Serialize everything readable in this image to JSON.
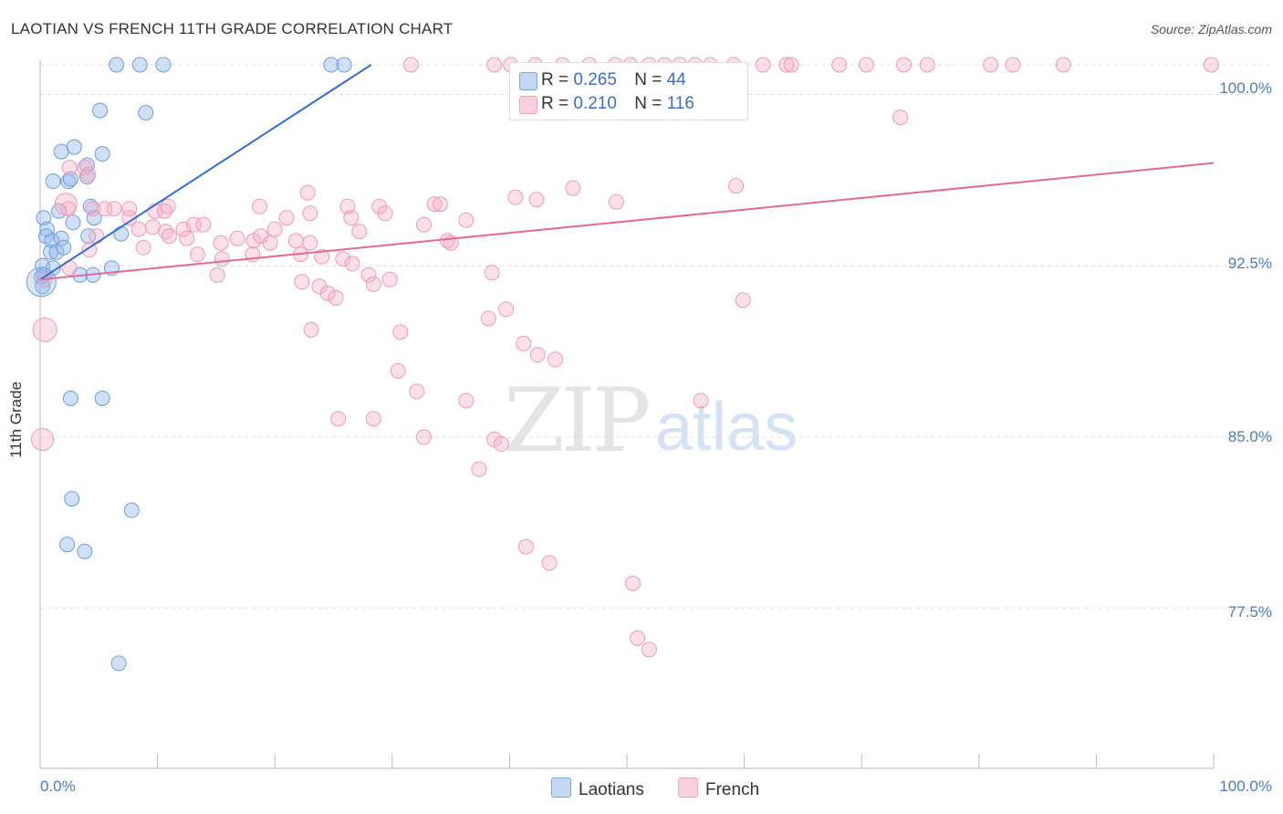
{
  "header": {
    "title": "LAOTIAN VS FRENCH 11TH GRADE CORRELATION CHART",
    "source": "Source: ZipAtlas.com"
  },
  "watermark": {
    "zip": "ZIP",
    "atlas": "atlas"
  },
  "legend": {
    "rows": [
      {
        "r_label": "R =",
        "r_value": "0.265",
        "n_label": "N =",
        "n_value": "44",
        "color": "#7aa6e0"
      },
      {
        "r_label": "R =",
        "r_value": "0.210",
        "n_label": "N =",
        "n_value": "116",
        "color": "#f0a0bc"
      }
    ]
  },
  "bottom_legend": {
    "laotians": "Laotians",
    "french": "French"
  },
  "chart_data": {
    "type": "scatter",
    "title": "LAOTIAN VS FRENCH 11TH GRADE CORRELATION CHART",
    "xlabel": "",
    "ylabel": "11th Grade",
    "xlim": [
      0,
      100
    ],
    "ylim": [
      70.5,
      101.5
    ],
    "x_tick_labels": [
      "0.0%",
      "100.0%"
    ],
    "y_ticks": [
      77.5,
      85.0,
      92.5,
      100.0
    ],
    "y_tick_labels": [
      "77.5%",
      "85.0%",
      "92.5%",
      "100.0%"
    ],
    "grid": true,
    "legend_position": "top-center",
    "series": [
      {
        "name": "Laotians",
        "color": "#7aa6e0",
        "trend": {
          "x": [
            0.0,
            28.2
          ],
          "y": [
            91.9,
            101.3
          ]
        },
        "points": [
          [
            6.5,
            101.3
          ],
          [
            8.5,
            101.3
          ],
          [
            10.5,
            101.3
          ],
          [
            24.8,
            101.3
          ],
          [
            25.9,
            101.3
          ],
          [
            5.1,
            99.3
          ],
          [
            9.0,
            99.2
          ],
          [
            1.8,
            97.5
          ],
          [
            2.9,
            97.7
          ],
          [
            5.3,
            97.4
          ],
          [
            4.0,
            96.9
          ],
          [
            1.1,
            96.2
          ],
          [
            2.4,
            96.2
          ],
          [
            2.6,
            96.3
          ],
          [
            4.0,
            96.4
          ],
          [
            1.6,
            94.9
          ],
          [
            4.3,
            95.1
          ],
          [
            0.3,
            94.6
          ],
          [
            0.6,
            94.1
          ],
          [
            2.8,
            94.4
          ],
          [
            4.6,
            94.6
          ],
          [
            0.5,
            93.8
          ],
          [
            1.0,
            93.6
          ],
          [
            1.8,
            93.7
          ],
          [
            4.1,
            93.8
          ],
          [
            6.9,
            93.9
          ],
          [
            0.9,
            93.1
          ],
          [
            1.4,
            93.1
          ],
          [
            2.0,
            93.3
          ],
          [
            0.2,
            92.5
          ],
          [
            0.3,
            92.1
          ],
          [
            1.1,
            92.4
          ],
          [
            0.1,
            92.0
          ],
          [
            3.4,
            92.1
          ],
          [
            4.5,
            92.1
          ],
          [
            6.1,
            92.4
          ],
          [
            0.2,
            91.6
          ],
          [
            2.6,
            86.7
          ],
          [
            5.3,
            86.7
          ],
          [
            2.7,
            82.3
          ],
          [
            7.8,
            81.8
          ],
          [
            2.3,
            80.3
          ],
          [
            3.8,
            80.0
          ],
          [
            6.7,
            75.1
          ]
        ]
      },
      {
        "name": "French",
        "color": "#f0a0bc",
        "trend": {
          "x": [
            0.0,
            100.0
          ],
          "y": [
            91.9,
            97.0
          ]
        },
        "points": [
          [
            31.6,
            101.3
          ],
          [
            38.7,
            101.3
          ],
          [
            40.1,
            101.3
          ],
          [
            42.2,
            101.3
          ],
          [
            44.5,
            101.3
          ],
          [
            46.8,
            101.3
          ],
          [
            49.0,
            101.3
          ],
          [
            50.3,
            101.3
          ],
          [
            51.9,
            101.3
          ],
          [
            53.2,
            101.3
          ],
          [
            54.5,
            101.3
          ],
          [
            55.8,
            101.3
          ],
          [
            57.1,
            101.3
          ],
          [
            59.1,
            101.3
          ],
          [
            61.6,
            101.3
          ],
          [
            63.6,
            101.3
          ],
          [
            64.0,
            101.3
          ],
          [
            68.1,
            101.3
          ],
          [
            70.4,
            101.3
          ],
          [
            73.6,
            101.3
          ],
          [
            75.6,
            101.3
          ],
          [
            81.0,
            101.3
          ],
          [
            82.9,
            101.3
          ],
          [
            87.2,
            101.3
          ],
          [
            99.8,
            101.3
          ],
          [
            73.3,
            99.0
          ],
          [
            2.5,
            96.8
          ],
          [
            3.8,
            96.8
          ],
          [
            4.1,
            96.5
          ],
          [
            59.3,
            96.0
          ],
          [
            40.5,
            95.5
          ],
          [
            22.8,
            95.7
          ],
          [
            4.5,
            95.0
          ],
          [
            6.3,
            95.0
          ],
          [
            5.5,
            95.0
          ],
          [
            7.6,
            95.0
          ],
          [
            10.9,
            95.1
          ],
          [
            18.7,
            95.1
          ],
          [
            26.2,
            95.1
          ],
          [
            28.9,
            95.1
          ],
          [
            33.6,
            95.2
          ],
          [
            34.1,
            95.2
          ],
          [
            42.3,
            95.4
          ],
          [
            45.4,
            95.9
          ],
          [
            49.1,
            95.3
          ],
          [
            2.4,
            95.0
          ],
          [
            9.8,
            94.9
          ],
          [
            10.6,
            94.9
          ],
          [
            21.0,
            94.6
          ],
          [
            23.0,
            94.8
          ],
          [
            26.5,
            94.6
          ],
          [
            29.4,
            94.8
          ],
          [
            7.6,
            94.6
          ],
          [
            8.4,
            94.1
          ],
          [
            9.6,
            94.2
          ],
          [
            10.7,
            94.0
          ],
          [
            12.2,
            94.1
          ],
          [
            13.1,
            94.3
          ],
          [
            13.9,
            94.3
          ],
          [
            20.0,
            94.1
          ],
          [
            27.2,
            94.0
          ],
          [
            32.7,
            94.3
          ],
          [
            36.3,
            94.5
          ],
          [
            4.8,
            93.8
          ],
          [
            11.0,
            93.8
          ],
          [
            12.5,
            93.7
          ],
          [
            15.4,
            93.5
          ],
          [
            16.8,
            93.7
          ],
          [
            18.2,
            93.6
          ],
          [
            18.8,
            93.8
          ],
          [
            19.6,
            93.5
          ],
          [
            21.8,
            93.6
          ],
          [
            23.0,
            93.5
          ],
          [
            34.7,
            93.6
          ],
          [
            35.0,
            93.5
          ],
          [
            4.2,
            93.2
          ],
          [
            8.8,
            93.3
          ],
          [
            13.4,
            93.0
          ],
          [
            15.5,
            92.8
          ],
          [
            18.1,
            93.0
          ],
          [
            22.2,
            93.0
          ],
          [
            24.0,
            92.9
          ],
          [
            25.8,
            92.8
          ],
          [
            26.6,
            92.6
          ],
          [
            2.5,
            92.4
          ],
          [
            15.1,
            92.1
          ],
          [
            22.3,
            91.8
          ],
          [
            23.8,
            91.6
          ],
          [
            28.0,
            92.1
          ],
          [
            29.8,
            91.9
          ],
          [
            38.5,
            92.2
          ],
          [
            28.4,
            91.7
          ],
          [
            24.5,
            91.3
          ],
          [
            25.2,
            91.1
          ],
          [
            59.9,
            91.0
          ],
          [
            39.7,
            90.6
          ],
          [
            38.2,
            90.2
          ],
          [
            23.1,
            89.7
          ],
          [
            30.7,
            89.6
          ],
          [
            41.2,
            89.1
          ],
          [
            42.4,
            88.6
          ],
          [
            43.9,
            88.4
          ],
          [
            30.5,
            87.9
          ],
          [
            32.1,
            87.0
          ],
          [
            36.3,
            86.6
          ],
          [
            56.3,
            86.6
          ],
          [
            25.4,
            85.8
          ],
          [
            28.4,
            85.8
          ],
          [
            32.7,
            85.0
          ],
          [
            38.7,
            84.9
          ],
          [
            39.3,
            84.7
          ],
          [
            37.4,
            83.6
          ],
          [
            41.4,
            80.2
          ],
          [
            43.4,
            79.5
          ],
          [
            50.5,
            78.6
          ],
          [
            50.9,
            76.2
          ],
          [
            51.9,
            75.7
          ],
          [
            0.4,
            91.9
          ]
        ]
      }
    ]
  }
}
